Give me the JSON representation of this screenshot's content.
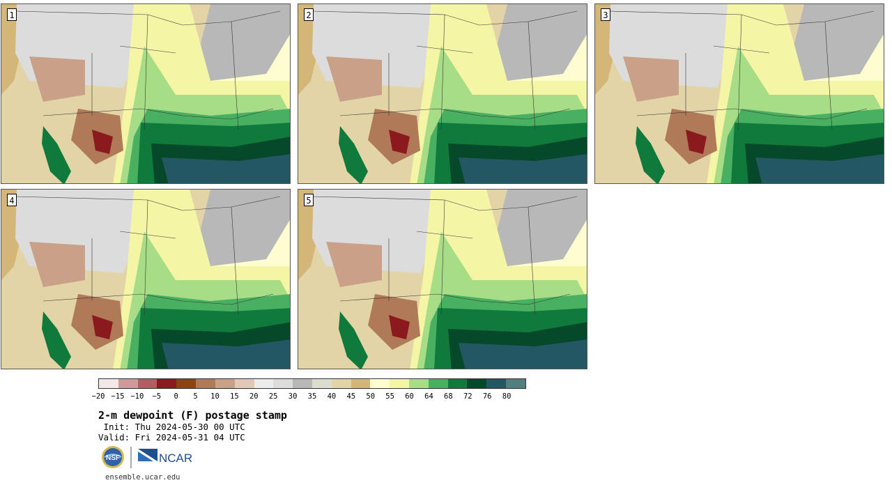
{
  "panels": [
    {
      "label": "1"
    },
    {
      "label": "2"
    },
    {
      "label": "3"
    },
    {
      "label": "4"
    },
    {
      "label": "5"
    }
  ],
  "colorbar": {
    "colors": [
      "#f3e8e8",
      "#d09a9c",
      "#b05f62",
      "#8b1a1f",
      "#8b4513",
      "#b07a58",
      "#c9a088",
      "#e3c8b8",
      "#ececec",
      "#dcdcdc",
      "#b8b8b8",
      "#dcdcd0",
      "#e3d4a8",
      "#d4b778",
      "#fdfdd0",
      "#f5f5a6",
      "#a8dd88",
      "#48b060",
      "#0f7a3c",
      "#05482a",
      "#245764",
      "#52807e"
    ],
    "ticks": [
      "−20",
      "−15",
      "−10",
      "−5",
      "0",
      "5",
      "10",
      "15",
      "20",
      "25",
      "30",
      "35",
      "40",
      "45",
      "50",
      "55",
      "60",
      "64",
      "68",
      "72",
      "76",
      "80"
    ]
  },
  "header": {
    "title": "2-m dewpoint (F) postage stamp",
    "init": " Init: Thu 2024-05-30 00 UTC",
    "valid": "Valid: Fri 2024-05-31 04 UTC"
  },
  "logos": {
    "nsf": "NSF",
    "ncar": "NCAR"
  },
  "footer": {
    "url": "ensemble.ucar.edu"
  }
}
